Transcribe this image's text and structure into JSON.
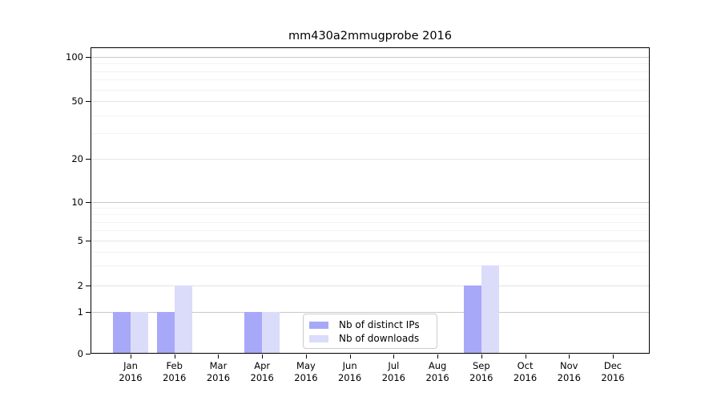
{
  "chart_data": {
    "type": "bar",
    "title": "mm430a2mmugprobe 2016",
    "categories": [
      "Jan",
      "Feb",
      "Mar",
      "Apr",
      "May",
      "Jun",
      "Jul",
      "Aug",
      "Sep",
      "Oct",
      "Nov",
      "Dec"
    ],
    "category_year": "2016",
    "series": [
      {
        "name": "Nb of distinct IPs",
        "color": "#a8a8f8",
        "values": [
          1,
          1,
          0,
          1,
          0,
          0,
          0,
          0,
          2,
          0,
          0,
          0
        ]
      },
      {
        "name": "Nb of downloads",
        "color": "#dbdbfa",
        "values": [
          1,
          2,
          0,
          1,
          0,
          0,
          0,
          0,
          3,
          0,
          0,
          0
        ]
      }
    ],
    "yticks": [
      0,
      1,
      2,
      5,
      10,
      20,
      50,
      100
    ],
    "minor_gridlines": [
      3,
      4,
      6,
      7,
      8,
      9,
      30,
      40,
      60,
      70,
      80,
      90
    ],
    "scale": "log above 1, linear 0-1 (symlog-like)",
    "ylim": [
      0,
      110
    ],
    "xlabel": "",
    "ylabel": "",
    "grid": "horizontal",
    "legend_position": "lower center-right inside plot"
  }
}
